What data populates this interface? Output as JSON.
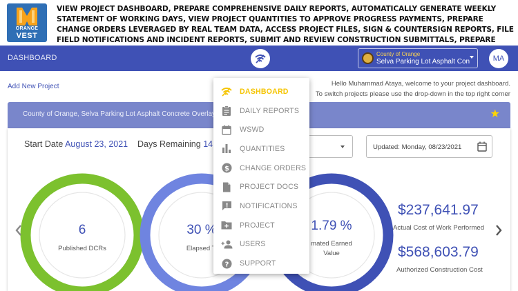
{
  "banner": {
    "logo_line1": "ORANGE",
    "logo_line2": "VEST",
    "text": "VIEW PROJECT DASHBOARD, PREPARE COMPREHENSIVE DAILY REPORTS, AUTOMATICALLY GENERATE WEEKLY STATEMENT OF WORKING DAYS, VIEW PROJECT QUANTITIES TO APPROVE PROGRESS PAYMENTS, PREPARE CHANGE ORDERS LEVERAGED BY REAL TEAM DATA, ACCESS PROJECT FILES, SIGN & COUNTERSIGN REPORTS, FILE FIELD NOTIFICATIONS AND INCIDENT REPORTS, SUBMIT AND REVIEW CONSTRUCTION SUBMITTALS, PREPARE AND RESPOND TO REQUESTS FOR INFORMATION, AND MORE."
  },
  "navbar": {
    "title": "DASHBOARD",
    "project_select": {
      "label": "County of Orange",
      "value": "Selva Parking Lot Asphalt Concre"
    },
    "avatar_initials": "MA"
  },
  "main": {
    "add_project": "Add New Project",
    "welcome_line1": "Hello Muhammad Ataya, welcome to your project dashboard.",
    "welcome_line2": "To switch projects please use the drop-down in the top right corner",
    "card_title": "County of Orange, Selva Parking Lot Asphalt Concrete Overlay",
    "start_label": "Start Date",
    "start_value": "August 23, 2021",
    "days_label": "Days Remaining",
    "days_value": "14",
    "updated": "Updated: Monday, 08/23/2021"
  },
  "gauges": [
    {
      "value": "6",
      "label": "Published DCRs",
      "color": "#7cc12e"
    },
    {
      "value": "30 %",
      "label": "Elapsed Ti",
      "color": "#4a63d6"
    },
    {
      "value": "1.79 %",
      "label1": "mated Earned",
      "label2": "Value",
      "color": "#3f51b5"
    }
  ],
  "stats": [
    {
      "value": "$237,641.97",
      "label": "Actual Cost of Work Performed"
    },
    {
      "value": "$568,603.79",
      "label": "Authorized Construction Cost"
    }
  ],
  "menu": {
    "items": [
      {
        "label": "DASHBOARD",
        "icon": "wifi-icon",
        "active": true
      },
      {
        "label": "DAILY REPORTS",
        "icon": "clipboard-icon"
      },
      {
        "label": "WSWD",
        "icon": "calendar-icon"
      },
      {
        "label": "QUANTITIES",
        "icon": "bar-chart-icon"
      },
      {
        "label": "CHANGE ORDERS",
        "icon": "dollar-icon"
      },
      {
        "label": "PROJECT DOCS",
        "icon": "document-icon"
      },
      {
        "label": "NOTIFICATIONS",
        "icon": "alert-message-icon"
      },
      {
        "label": "PROJECT",
        "icon": "folder-add-icon"
      },
      {
        "label": "USERS",
        "icon": "person-add-icon"
      },
      {
        "label": "SUPPORT",
        "icon": "help-icon"
      }
    ]
  },
  "colors": {
    "primary": "#3f51b5",
    "header_light": "#7986cb",
    "accent": "#f5c400",
    "green": "#7cc12e"
  }
}
